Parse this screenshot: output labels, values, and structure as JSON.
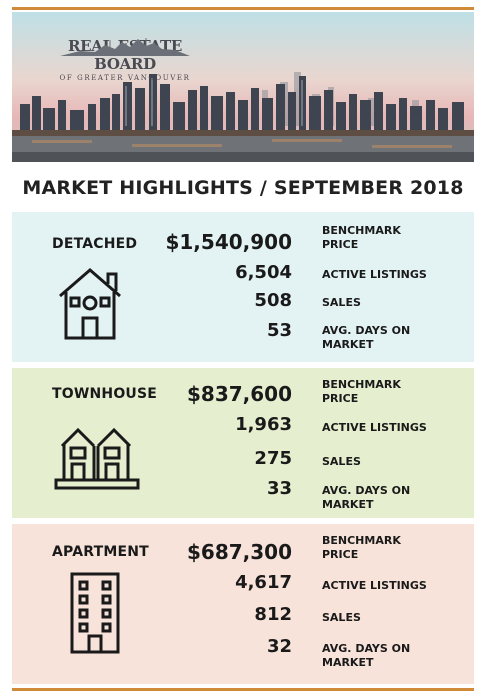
{
  "header": {
    "logo_line1": "REAL ESTATE BOARD",
    "logo_line2": "OF GREATER VANCOUVER"
  },
  "title": "MARKET HIGHLIGHTS / SEPTEMBER 2018",
  "sections": [
    {
      "name": "DETACHED",
      "icon": "house-icon",
      "benchmark": "$1,540,900",
      "active_listings": "6,504",
      "sales": "508",
      "days_on_market": "53"
    },
    {
      "name": "TOWNHOUSE",
      "icon": "townhouse-icon",
      "benchmark": "$837,600",
      "active_listings": "1,963",
      "sales": "275",
      "days_on_market": "33"
    },
    {
      "name": "APARTMENT",
      "icon": "apartment-building-icon",
      "benchmark": "$687,300",
      "active_listings": "4,617",
      "sales": "812",
      "days_on_market": "32"
    }
  ],
  "labels": {
    "benchmark_1": "BENCHMARK",
    "benchmark_2": "PRICE",
    "active_listings": "ACTIVE LISTINGS",
    "sales": "SALES",
    "days_1": "AVG. DAYS ON",
    "days_2": "MARKET"
  },
  "colors": {
    "accent_bar": "#d08a3a",
    "detached_bg": "#e3f3f4",
    "townhouse_bg": "#e5efcf",
    "apartment_bg": "#f7e3d9"
  }
}
